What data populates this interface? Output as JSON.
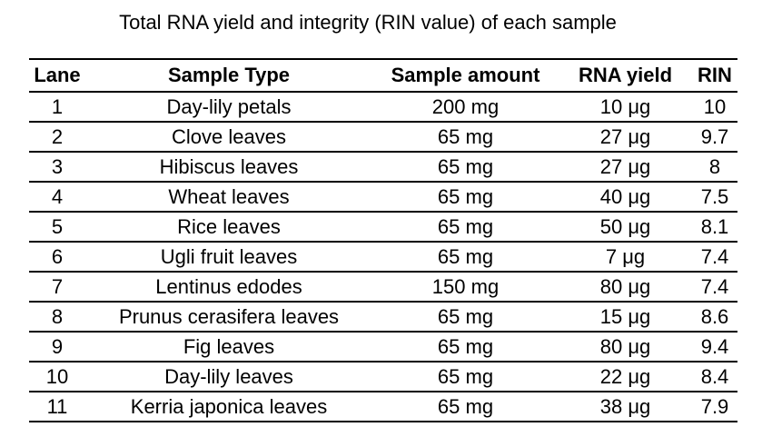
{
  "title": "Total RNA yield and integrity (RIN value) of each sample",
  "columns": [
    "Lane",
    "Sample Type",
    "Sample amount",
    "RNA yield",
    "RIN"
  ],
  "rows": [
    [
      "1",
      "Day-lily petals",
      "200 mg",
      "10 μg",
      "10"
    ],
    [
      "2",
      "Clove leaves",
      "65 mg",
      "27 μg",
      "9.7"
    ],
    [
      "3",
      "Hibiscus leaves",
      "65 mg",
      "27 μg",
      "8"
    ],
    [
      "4",
      "Wheat leaves",
      "65 mg",
      "40 μg",
      "7.5"
    ],
    [
      "5",
      "Rice leaves",
      "65 mg",
      "50 μg",
      "8.1"
    ],
    [
      "6",
      "Ugli fruit leaves",
      "65 mg",
      "7 μg",
      "7.4"
    ],
    [
      "7",
      "Lentinus edodes",
      "150 mg",
      "80 μg",
      "7.4"
    ],
    [
      "8",
      "Prunus cerasifera leaves",
      "65 mg",
      "15 μg",
      "8.6"
    ],
    [
      "9",
      "Fig leaves",
      "65 mg",
      "80 μg",
      "9.4"
    ],
    [
      "10",
      "Day-lily leaves",
      "65 mg",
      "22 μg",
      "8.4"
    ],
    [
      "11",
      "Kerria japonica leaves",
      "65 mg",
      "38 μg",
      "7.9"
    ]
  ]
}
